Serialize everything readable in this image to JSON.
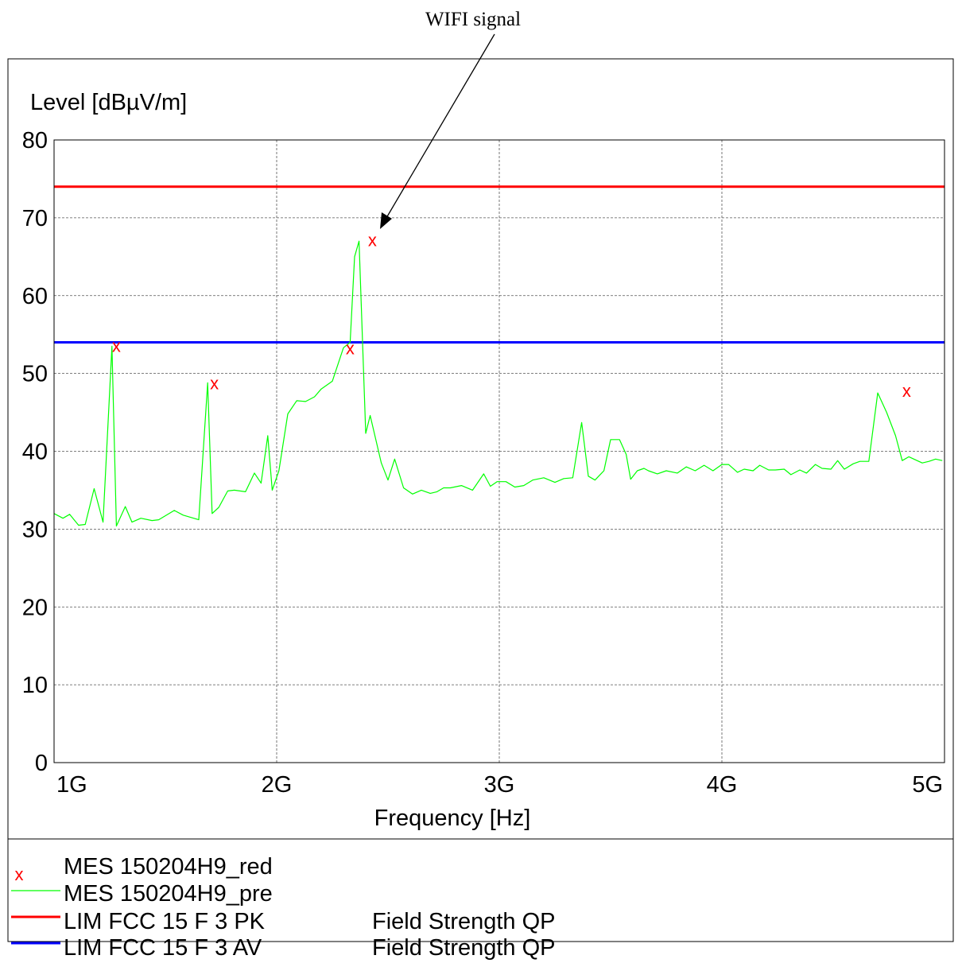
{
  "annotation": {
    "text": "WIFI signal"
  },
  "chart_data": {
    "type": "line",
    "ylabel": "Level [dBµV/m]",
    "xlabel": "Frequency [Hz]",
    "xlim": [
      1000000000,
      5000000000
    ],
    "ylim": [
      0,
      80
    ],
    "grid": true,
    "x_ticks": [
      {
        "value": 1000000000,
        "label": "1G"
      },
      {
        "value": 2000000000,
        "label": "2G"
      },
      {
        "value": 3000000000,
        "label": "3G"
      },
      {
        "value": 4000000000,
        "label": "4G"
      },
      {
        "value": 5000000000,
        "label": "5G"
      }
    ],
    "y_ticks": [
      {
        "value": 0,
        "label": "0"
      },
      {
        "value": 10,
        "label": "10"
      },
      {
        "value": 20,
        "label": "20"
      },
      {
        "value": 30,
        "label": "30"
      },
      {
        "value": 40,
        "label": "40"
      },
      {
        "value": 50,
        "label": "50"
      },
      {
        "value": 60,
        "label": "60"
      },
      {
        "value": 70,
        "label": "70"
      },
      {
        "value": 80,
        "label": "80"
      }
    ],
    "limits": [
      {
        "name": "LIM  FCC 15 F 3 PK",
        "value": 74,
        "color": "#ff0000",
        "description": "Field Strength QP"
      },
      {
        "name": "LIM  FCC 15 F 3 AV",
        "value": 54,
        "color": "#0000ff",
        "description": "Field Strength QP"
      }
    ],
    "series": [
      {
        "name": "MES  150204H9_pre",
        "style": "line",
        "color": "#00ff00",
        "x": [
          1.0,
          1.04,
          1.07,
          1.11,
          1.14,
          1.18,
          1.22,
          1.26,
          1.28,
          1.32,
          1.35,
          1.39,
          1.44,
          1.47,
          1.54,
          1.58,
          1.65,
          1.69,
          1.71,
          1.74,
          1.78,
          1.81,
          1.86,
          1.9,
          1.93,
          1.96,
          1.98,
          2.01,
          2.05,
          2.09,
          2.13,
          2.17,
          2.2,
          2.25,
          2.3,
          2.33,
          2.35,
          2.37,
          2.4,
          2.42,
          2.47,
          2.5,
          2.53,
          2.57,
          2.61,
          2.65,
          2.69,
          2.72,
          2.75,
          2.78,
          2.83,
          2.88,
          2.93,
          2.96,
          2.99,
          3.03,
          3.07,
          3.11,
          3.15,
          3.2,
          3.25,
          3.29,
          3.33,
          3.37,
          3.4,
          3.43,
          3.45,
          3.47,
          3.5,
          3.54,
          3.57,
          3.59,
          3.62,
          3.65,
          3.67,
          3.71,
          3.75,
          3.8,
          3.84,
          3.88,
          3.92,
          3.96,
          4.0,
          4.03,
          4.07,
          4.1,
          4.14,
          4.17,
          4.21,
          4.24,
          4.28,
          4.31,
          4.35,
          4.38,
          4.42,
          4.45,
          4.49,
          4.52,
          4.55,
          4.59,
          4.62,
          4.66,
          4.7,
          4.74,
          4.78,
          4.81,
          4.84,
          4.87,
          4.9,
          4.93,
          4.96,
          4.99
        ],
        "y": [
          32,
          31.4,
          31.9,
          30.5,
          30.6,
          35.2,
          30.9,
          53.5,
          30.4,
          32.9,
          30.9,
          31.4,
          31.1,
          31.2,
          32.4,
          31.8,
          31.2,
          48.8,
          32.0,
          32.8,
          34.9,
          35.0,
          34.8,
          37.2,
          35.9,
          42.0,
          35.0,
          37.5,
          44.8,
          46.5,
          46.4,
          47.0,
          48.0,
          49.0,
          53.3,
          54.0,
          65.0,
          67.0,
          42.3,
          44.6,
          38.5,
          36.3,
          39.0,
          35.3,
          34.5,
          35.0,
          34.6,
          34.8,
          35.3,
          35.3,
          35.6,
          35.0,
          37.1,
          35.5,
          36.1,
          36.1,
          35.4,
          35.6,
          36.3,
          36.6,
          36.0,
          36.5,
          36.6,
          43.7,
          36.8,
          36.3,
          36.9,
          37.5,
          41.5,
          41.5,
          39.6,
          36.4,
          37.5,
          37.8,
          37.5,
          37.1,
          37.5,
          37.2,
          38.0,
          37.5,
          38.2,
          37.5,
          38.3,
          38.3,
          37.3,
          37.7,
          37.5,
          38.2,
          37.6,
          37.6,
          37.7,
          37.0,
          37.6,
          37.2,
          38.3,
          37.8,
          37.7,
          38.8,
          37.7,
          38.4,
          38.7,
          38.7,
          47.5,
          45.0,
          42.0,
          38.8,
          39.3,
          38.9,
          38.5,
          38.7,
          39.0,
          38.8
        ]
      },
      {
        "name": "MES  150204H9_red",
        "style": "marker",
        "marker": "x",
        "color": "#ff0000",
        "x": [
          1.28,
          1.72,
          2.33,
          2.43,
          4.83
        ],
        "y": [
          53.6,
          48.8,
          53.3,
          67.2,
          47.8
        ]
      }
    ],
    "legend_placement": "bottom-left"
  }
}
